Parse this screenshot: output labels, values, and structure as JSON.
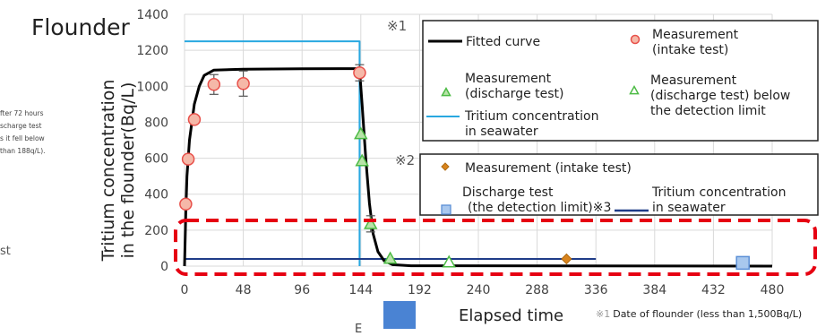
{
  "title": "Flounder",
  "side_note": [
    "fter 72 hours",
    "scharge test",
    "s it fell below",
    " than 188q/L)."
  ],
  "side_label": "st",
  "footnote": {
    "mark": "※1",
    "text": "Date of flounder (less than 1,500Bq/L)"
  },
  "bottom_fragment": "E",
  "chart_data": {
    "type": "scatter",
    "xlabel": "Elapsed time",
    "ylabel_lines": [
      "Tritium concentration",
      "in the flounder(Bq/L)"
    ],
    "xlim": [
      0,
      480
    ],
    "ylim": [
      0,
      1400
    ],
    "xticks": [
      0,
      48,
      96,
      144,
      192,
      240,
      288,
      336,
      384,
      432,
      480
    ],
    "yticks": [
      0,
      200,
      400,
      600,
      800,
      1000,
      1200,
      1400
    ],
    "grid": true,
    "fitted_curve": [
      [
        0,
        0
      ],
      [
        1,
        300
      ],
      [
        2,
        500
      ],
      [
        4,
        700
      ],
      [
        8,
        900
      ],
      [
        12,
        1000
      ],
      [
        16,
        1060
      ],
      [
        24,
        1090
      ],
      [
        48,
        1095
      ],
      [
        96,
        1097
      ],
      [
        140,
        1098
      ],
      [
        143,
        1090
      ],
      [
        145,
        900
      ],
      [
        148,
        600
      ],
      [
        151,
        350
      ],
      [
        154,
        180
      ],
      [
        158,
        80
      ],
      [
        163,
        30
      ],
      [
        170,
        8
      ],
      [
        185,
        2
      ],
      [
        480,
        0
      ]
    ],
    "seawater_line": [
      [
        0,
        1250
      ],
      [
        143,
        1250
      ],
      [
        143,
        0
      ]
    ],
    "seawater_line_2": [
      [
        0,
        40
      ],
      [
        336,
        40
      ]
    ],
    "intake_measurements": [
      {
        "x": 1,
        "y": 345
      },
      {
        "x": 3,
        "y": 595
      },
      {
        "x": 8,
        "y": 815
      },
      {
        "x": 24,
        "y": 1010,
        "err": 55
      },
      {
        "x": 48,
        "y": 1015,
        "err": 70
      },
      {
        "x": 143,
        "y": 1075,
        "err": 45
      }
    ],
    "discharge_measurements": [
      {
        "x": 144,
        "y": 735
      },
      {
        "x": 145,
        "y": 585
      },
      {
        "x": 152,
        "y": 235,
        "err": 45
      },
      {
        "x": 168,
        "y": 42
      }
    ],
    "discharge_below_limit": [
      {
        "x": 216,
        "y": 22
      }
    ],
    "intake_measurement_2": [
      {
        "x": 312,
        "y": 40
      }
    ],
    "discharge_detection_limit": [
      {
        "x": 456,
        "y": 18
      }
    ],
    "annotations": [
      {
        "text": "※1",
        "x": 152,
        "y": 1330
      },
      {
        "text": "※2",
        "x": 152,
        "y": 590
      }
    ]
  },
  "legend1": {
    "fitted": "Fitted curve",
    "intake": [
      "Measurement",
      "(intake test)"
    ],
    "discharge": [
      "Measurement",
      "(discharge test)"
    ],
    "below": [
      "Measurement",
      "(discharge test) below",
      "the detection limit"
    ],
    "seawater": [
      "Tritium concentration",
      "in seawater"
    ]
  },
  "legend2": {
    "intake": "Measurement (intake test)",
    "discharge_limit": [
      "Discharge test",
      "(the detection limit)※3"
    ],
    "seawater": [
      "Tritium concentration",
      "in seawater"
    ]
  },
  "colors": {
    "grid": "#d9d9d9",
    "fitted": "#000000",
    "intake": "#e8504a",
    "intake_fill": "#f5b8a8",
    "discharge": "#4dbb45",
    "seawater": "#29a8e0",
    "seawater2": "#1f3c88",
    "intake2": "#d9841c",
    "limit": "#5b8fd6",
    "limit_fill": "#a9c8ee",
    "highlight": "#e60012"
  }
}
